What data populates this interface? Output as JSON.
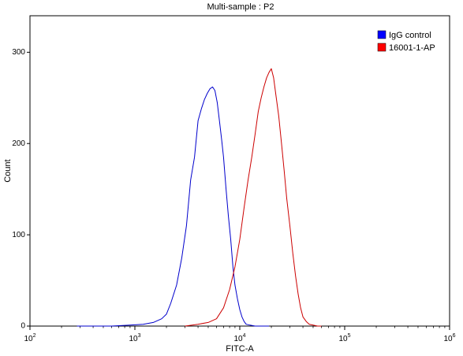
{
  "chart_data": {
    "type": "line",
    "title": "Multi-sample : P2",
    "xlabel": "FITC-A",
    "ylabel": "Count",
    "xscale": "log",
    "xlim": [
      100,
      1000000
    ],
    "ylim": [
      0,
      340
    ],
    "x_ticks": [
      {
        "value": 100,
        "base": "10",
        "exp": "2"
      },
      {
        "value": 1000,
        "base": "10",
        "exp": "3"
      },
      {
        "value": 10000,
        "base": "10",
        "exp": "4"
      },
      {
        "value": 100000,
        "base": "10",
        "exp": "5"
      },
      {
        "value": 1000000,
        "base": "10",
        "exp": "6"
      }
    ],
    "y_ticks": [
      0,
      100,
      200,
      300
    ],
    "grid": false,
    "legend_position": "top-right",
    "series": [
      {
        "name": "IgG control",
        "color": "#0000cc",
        "legend_color": "#0000ff",
        "x": [
          280,
          600,
          900,
          1200,
          1500,
          1800,
          2000,
          2200,
          2500,
          2800,
          3100,
          3400,
          3700,
          4000,
          4300,
          4600,
          4900,
          5200,
          5500,
          5800,
          6100,
          6400,
          6700,
          7000,
          7400,
          7800,
          8200,
          8600,
          9000,
          9500,
          10000,
          10500,
          11000,
          11500,
          12500,
          14000,
          16000,
          19000
        ],
        "y": [
          0,
          0,
          1,
          2,
          4,
          8,
          13,
          25,
          45,
          75,
          110,
          160,
          185,
          225,
          238,
          248,
          255,
          260,
          262,
          258,
          245,
          225,
          205,
          185,
          150,
          120,
          95,
          65,
          45,
          30,
          18,
          10,
          5,
          2,
          1,
          0,
          0,
          0
        ]
      },
      {
        "name": "16001-1-AP",
        "color": "#cc0000",
        "legend_color": "#ff0000",
        "x": [
          3000,
          4000,
          5000,
          6000,
          7000,
          8000,
          9000,
          10000,
          11000,
          12000,
          13000,
          14000,
          15000,
          16000,
          17000,
          18000,
          19000,
          20000,
          21000,
          22000,
          23500,
          25000,
          26500,
          28000,
          30000,
          32000,
          34000,
          36000,
          38000,
          40000,
          43000,
          46000,
          50000,
          55000,
          60000
        ],
        "y": [
          0,
          2,
          4,
          8,
          20,
          40,
          65,
          95,
          130,
          160,
          185,
          210,
          235,
          250,
          262,
          272,
          278,
          282,
          272,
          255,
          230,
          200,
          170,
          140,
          110,
          80,
          55,
          35,
          20,
          10,
          5,
          2,
          1,
          0,
          0
        ]
      }
    ]
  }
}
